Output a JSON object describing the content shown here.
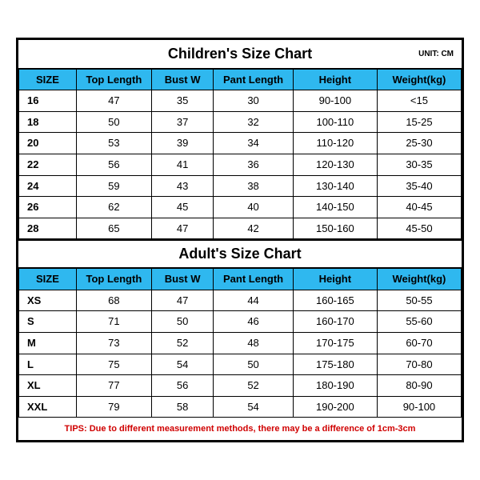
{
  "colors": {
    "header_bg": "#2fb8ef",
    "border": "#000000",
    "tips_text": "#d00000",
    "background": "#ffffff"
  },
  "children": {
    "title": "Children's Size Chart",
    "unit": "UNIT: CM",
    "columns": [
      "SIZE",
      "Top Length",
      "Bust W",
      "Pant Length",
      "Height",
      "Weight(kg)"
    ],
    "rows": [
      [
        "16",
        "47",
        "35",
        "30",
        "90-100",
        "<15"
      ],
      [
        "18",
        "50",
        "37",
        "32",
        "100-110",
        "15-25"
      ],
      [
        "20",
        "53",
        "39",
        "34",
        "110-120",
        "25-30"
      ],
      [
        "22",
        "56",
        "41",
        "36",
        "120-130",
        "30-35"
      ],
      [
        "24",
        "59",
        "43",
        "38",
        "130-140",
        "35-40"
      ],
      [
        "26",
        "62",
        "45",
        "40",
        "140-150",
        "40-45"
      ],
      [
        "28",
        "65",
        "47",
        "42",
        "150-160",
        "45-50"
      ]
    ]
  },
  "adult": {
    "title": "Adult's Size Chart",
    "columns": [
      "SIZE",
      "Top Length",
      "Bust W",
      "Pant Length",
      "Height",
      "Weight(kg)"
    ],
    "rows": [
      [
        "XS",
        "68",
        "47",
        "44",
        "160-165",
        "50-55"
      ],
      [
        "S",
        "71",
        "50",
        "46",
        "160-170",
        "55-60"
      ],
      [
        "M",
        "73",
        "52",
        "48",
        "170-175",
        "60-70"
      ],
      [
        "L",
        "75",
        "54",
        "50",
        "175-180",
        "70-80"
      ],
      [
        "XL",
        "77",
        "56",
        "52",
        "180-190",
        "80-90"
      ],
      [
        "XXL",
        "79",
        "58",
        "54",
        "190-200",
        "90-100"
      ]
    ]
  },
  "tips": "TIPS: Due to different measurement methods, there may be a difference of 1cm-3cm"
}
